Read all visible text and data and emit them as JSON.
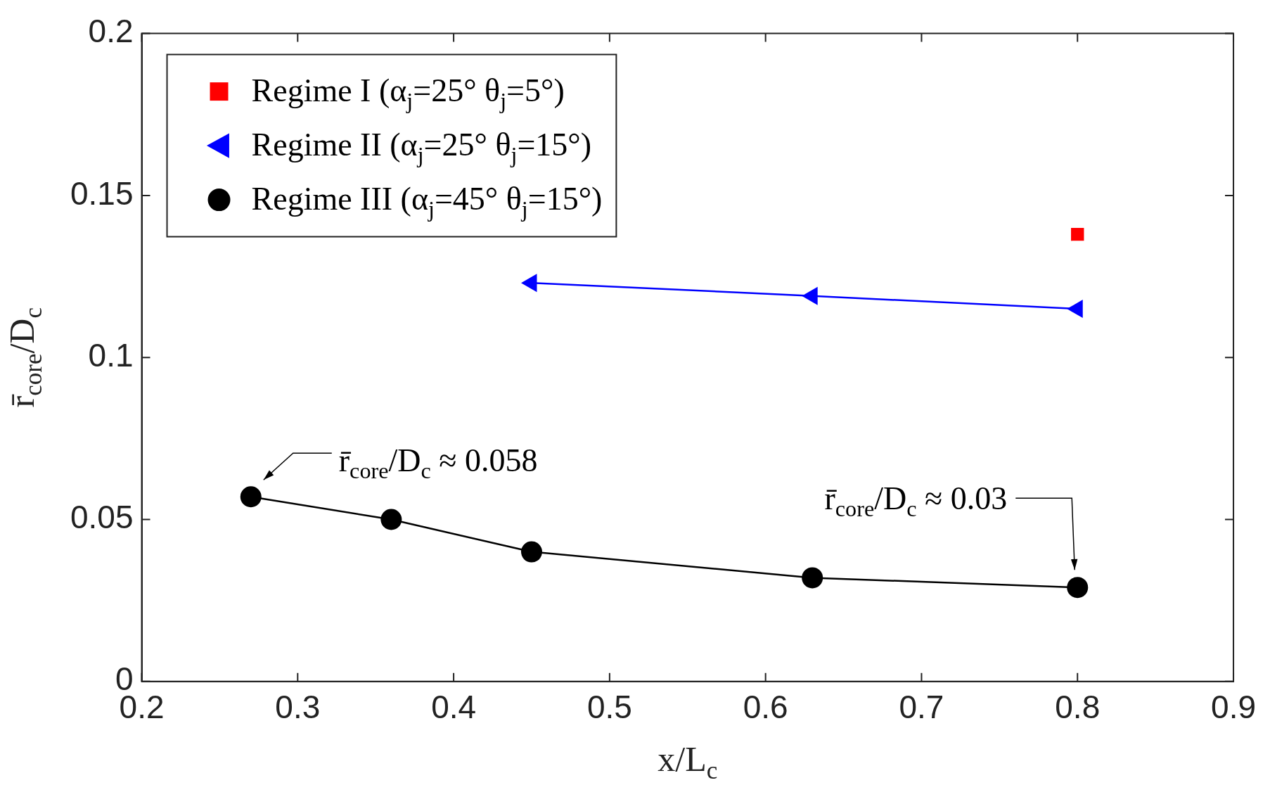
{
  "chart_data": {
    "type": "line",
    "xlabel": "x/L$_{c}$",
    "ylabel": "r̄$_{core}$/D$_{c}$",
    "xlim": [
      0.2,
      0.9
    ],
    "xticks": [
      0.2,
      0.3,
      0.4,
      0.5,
      0.6,
      0.7,
      0.8,
      0.9
    ],
    "ylim": [
      0,
      0.2
    ],
    "yticks": [
      0,
      0.05,
      0.1,
      0.15,
      0.2
    ],
    "grid": false,
    "legend": "top left",
    "series": [
      {
        "name": "Regime I (α$_{j}$=25° θ$_{j}$=5°)",
        "type": "scatter",
        "marker": "square",
        "color": "#ff0000",
        "x": [
          0.8
        ],
        "values": [
          0.138
        ]
      },
      {
        "name": "Regime II (α$_{j}$=25° θ$_{j}$=15°)",
        "type": "line",
        "marker": "triangle",
        "color": "#0000ff",
        "x": [
          0.45,
          0.63,
          0.8
        ],
        "values": [
          0.123,
          0.119,
          0.115
        ]
      },
      {
        "name": "Regime III (α$_{j}$=45° θ$_{j}$=15°)",
        "type": "line",
        "marker": "circle",
        "color": "#000000",
        "x": [
          0.27,
          0.36,
          0.45,
          0.63,
          0.8
        ],
        "values": [
          0.057,
          0.05,
          0.04,
          0.032,
          0.029
        ]
      }
    ],
    "annotations": [
      {
        "text": "r̄$_{core}$/D$_{c}$ ≈ 0.058",
        "x": 0.27,
        "y": 0.057
      },
      {
        "text": "r̄$_{core}$/D$_{c}$ ≈ 0.03",
        "x": 0.8,
        "y": 0.029
      }
    ]
  }
}
